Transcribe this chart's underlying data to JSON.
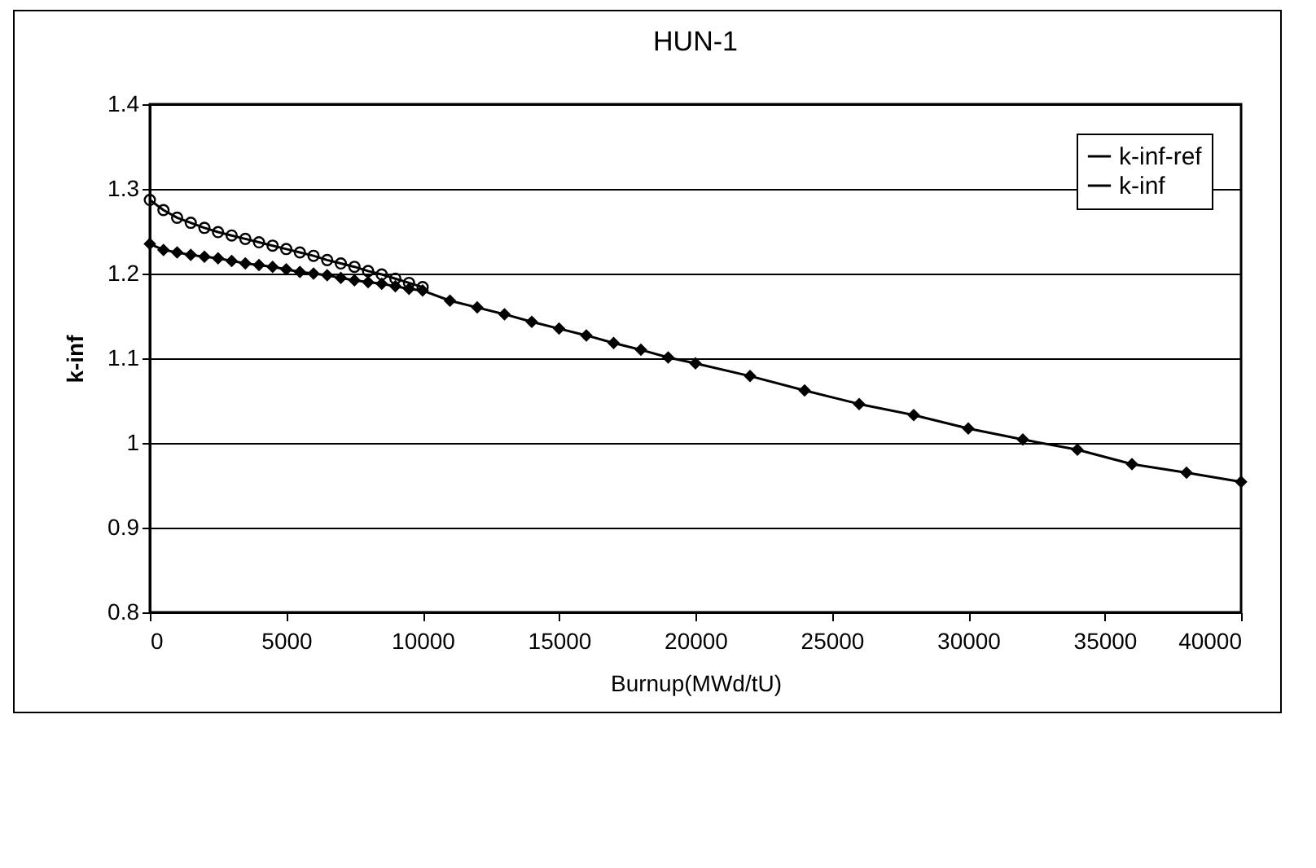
{
  "chart_data": {
    "type": "line",
    "title": "HUN-1",
    "xlabel": "Burnup(MWd/tU)",
    "ylabel": "k-inf",
    "xlim": [
      0,
      40000
    ],
    "xticks": [
      0,
      5000,
      10000,
      15000,
      20000,
      25000,
      30000,
      35000,
      40000
    ],
    "ylim": [
      0.8,
      1.4
    ],
    "yticks": [
      0.8,
      0.9,
      1,
      1.1,
      1.2,
      1.3,
      1.4
    ],
    "grid": "y",
    "legend": "top right",
    "line_style": "solid",
    "series": [
      {
        "name": "k-inf-ref",
        "color": "#000000",
        "marker": "circle",
        "x": [
          0,
          500,
          1000,
          1500,
          2000,
          2500,
          3000,
          3500,
          4000,
          4500,
          5000,
          5500,
          6000,
          6500,
          7000,
          7500,
          8000,
          8500,
          9000,
          9500,
          10000
        ],
        "values": [
          1.287,
          1.275,
          1.266,
          1.26,
          1.254,
          1.249,
          1.245,
          1.241,
          1.237,
          1.233,
          1.229,
          1.225,
          1.221,
          1.216,
          1.212,
          1.208,
          1.203,
          1.199,
          1.194,
          1.189,
          1.184
        ]
      },
      {
        "name": "k-inf",
        "color": "#000000",
        "marker": "diamond",
        "x": [
          0,
          500,
          1000,
          1500,
          2000,
          2500,
          3000,
          3500,
          4000,
          4500,
          5000,
          5500,
          6000,
          6500,
          7000,
          7500,
          8000,
          8500,
          9000,
          9500,
          10000,
          11000,
          12000,
          13000,
          14000,
          15000,
          16000,
          17000,
          18000,
          19000,
          20000,
          22000,
          24000,
          26000,
          28000,
          30000,
          32000,
          34000,
          36000,
          38000,
          40000
        ],
        "values": [
          1.235,
          1.228,
          1.225,
          1.222,
          1.22,
          1.218,
          1.215,
          1.212,
          1.21,
          1.208,
          1.205,
          1.202,
          1.2,
          1.198,
          1.195,
          1.192,
          1.19,
          1.188,
          1.185,
          1.182,
          1.18,
          1.168,
          1.16,
          1.152,
          1.143,
          1.135,
          1.127,
          1.118,
          1.11,
          1.101,
          1.094,
          1.079,
          1.062,
          1.046,
          1.033,
          1.017,
          1.004,
          0.992,
          0.975,
          0.965,
          0.954
        ]
      }
    ]
  }
}
